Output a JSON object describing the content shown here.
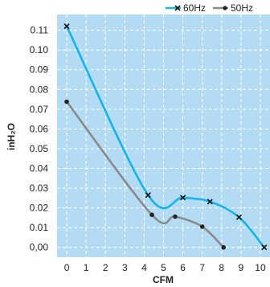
{
  "chart_data": {
    "type": "line",
    "title": "",
    "xlabel": "CFM",
    "ylabel": "inH₂O",
    "xlim": [
      -0.5,
      10.5
    ],
    "ylim": [
      -0.005,
      0.118
    ],
    "x_ticks": [
      "0",
      "1",
      "2",
      "3",
      "4",
      "5",
      "6",
      "7",
      "8",
      "9",
      "10"
    ],
    "y_ticks": [
      "0,00",
      "0.01",
      "0.02",
      "0.03",
      "0.04",
      "0.05",
      "0.06",
      "0.07",
      "0.08",
      "0.09",
      "0.10",
      "0.11"
    ],
    "grid": true,
    "legend_position": "top-right",
    "plot_background": "#b3dcf4",
    "series": [
      {
        "name": "60Hz",
        "color": "#14b4e6",
        "marker": "x",
        "points": [
          [
            0.0,
            0.112
          ],
          [
            4.2,
            0.0265
          ],
          [
            6.0,
            0.0252
          ],
          [
            7.4,
            0.0232
          ],
          [
            8.9,
            0.0153
          ],
          [
            10.2,
            0.0
          ]
        ]
      },
      {
        "name": "50Hz",
        "color": "#8a8a8a",
        "marker": "dot",
        "points": [
          [
            0.0,
            0.0738
          ],
          [
            4.4,
            0.0165
          ],
          [
            5.6,
            0.0156
          ],
          [
            7.0,
            0.0105
          ],
          [
            8.1,
            0.0
          ]
        ]
      }
    ]
  }
}
